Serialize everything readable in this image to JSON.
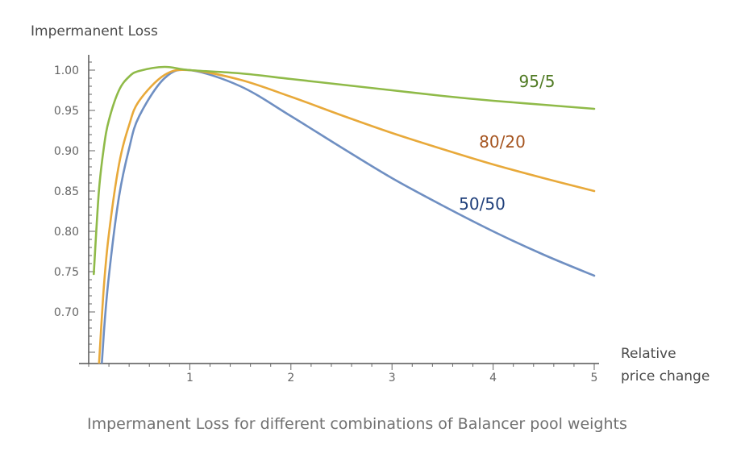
{
  "chart_data": {
    "type": "line",
    "ylabel": "Impermanent Loss",
    "xlabel_lines": [
      "Relative",
      "price change"
    ],
    "caption": "Impermanent Loss for different combinations of Balancer pool weights",
    "xlim": [
      0,
      5
    ],
    "ylim": [
      0.64,
      1.02
    ],
    "x_ticks": [
      1,
      2,
      3,
      4,
      5
    ],
    "x_tick_labels": [
      "1",
      "2",
      "3",
      "4",
      "5"
    ],
    "y_ticks": [
      0.7,
      0.75,
      0.8,
      0.85,
      0.9,
      0.95,
      1.0
    ],
    "y_tick_labels": [
      "0.70",
      "0.75",
      "0.80",
      "0.85",
      "0.90",
      "0.95",
      "1.00"
    ],
    "grid": false,
    "series": [
      {
        "name": "50/50",
        "weight": 0.5,
        "color": "#6f8fc2",
        "label_color": "#1f3f7a",
        "x": [
          0.1,
          0.15,
          0.2,
          0.3,
          0.4,
          0.5,
          0.75,
          1,
          1.5,
          2,
          2.5,
          3,
          3.5,
          4,
          4.5,
          5
        ],
        "values": [
          0.575,
          0.674,
          0.745,
          0.843,
          0.903,
          0.943,
          0.99,
          1.0,
          0.98,
          0.943,
          0.904,
          0.866,
          0.832,
          0.8,
          0.771,
          0.745
        ]
      },
      {
        "name": "80/20",
        "weight": 0.8,
        "color": "#e8a93a",
        "label_color": "#a5541f",
        "x": [
          0.1,
          0.15,
          0.2,
          0.3,
          0.4,
          0.5,
          0.75,
          1,
          1.5,
          2,
          2.5,
          3,
          3.5,
          4,
          4.5,
          5
        ],
        "values": [
          0.631,
          0.731,
          0.797,
          0.883,
          0.932,
          0.962,
          0.994,
          1.0,
          0.988,
          0.967,
          0.944,
          0.922,
          0.902,
          0.883,
          0.866,
          0.85
        ]
      },
      {
        "name": "95/5",
        "weight": 0.95,
        "color": "#8fba48",
        "label_color": "#4f7a22",
        "x": [
          0.05,
          0.1,
          0.15,
          0.2,
          0.3,
          0.4,
          0.5,
          0.75,
          1,
          1.5,
          2,
          2.5,
          3,
          3.5,
          4,
          4.5,
          5
        ],
        "values": [
          0.747,
          0.848,
          0.904,
          0.938,
          0.975,
          0.992,
          0.999,
          1.004,
          1.0,
          0.996,
          0.989,
          0.982,
          0.975,
          0.968,
          0.962,
          0.957,
          0.952
        ]
      }
    ]
  }
}
